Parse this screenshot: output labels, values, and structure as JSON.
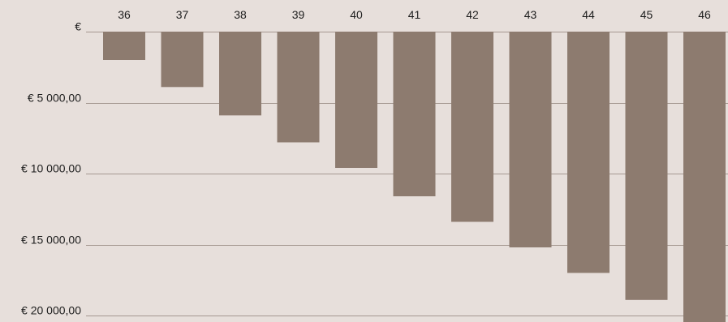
{
  "chart_data": {
    "type": "bar",
    "title": "",
    "xlabel": "",
    "ylabel": "",
    "categories": [
      "36",
      "37",
      "38",
      "39",
      "40",
      "41",
      "42",
      "43",
      "44",
      "45",
      "46"
    ],
    "values": [
      2000,
      3900,
      5900,
      7800,
      9600,
      11600,
      13400,
      15200,
      17000,
      18900,
      20500
    ],
    "ylim": [
      0,
      20000
    ],
    "y_tick_values": [
      0,
      5000,
      10000,
      15000,
      20000
    ],
    "y_tick_labels": [
      "€",
      "€ 5 000,00",
      "€ 10 000,00",
      "€ 15 000,00",
      "€ 20 000,00"
    ],
    "axis_orientation": "values increase downward, category labels on top",
    "grid": true,
    "colors": {
      "bar": "#8d7b6f",
      "grid": "#a59891",
      "background": "#e7dfdb"
    }
  }
}
